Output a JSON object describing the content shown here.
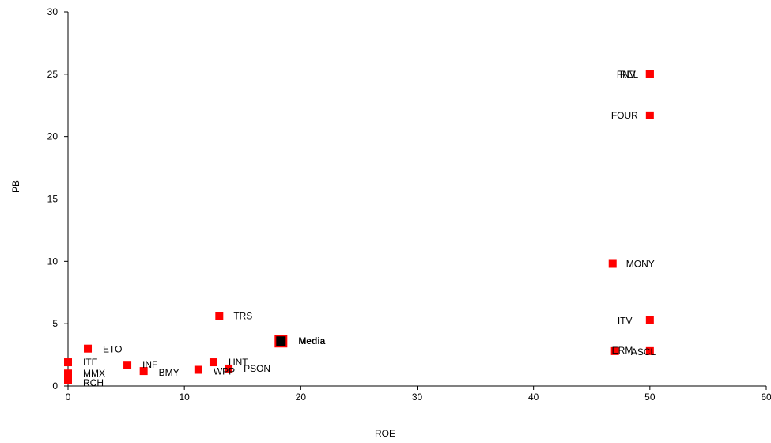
{
  "chart_data": {
    "type": "scatter",
    "title": "",
    "xlabel": "ROE",
    "ylabel": "PB",
    "xlim": [
      0,
      60
    ],
    "ylim": [
      0,
      30
    ],
    "xticks": [
      0,
      10,
      20,
      30,
      40,
      50,
      60
    ],
    "yticks": [
      0,
      5,
      10,
      15,
      20,
      25,
      30
    ],
    "grid": false,
    "marker_color": "#ff0000",
    "highlight_color": "#000000",
    "points": [
      {
        "label": "REL",
        "x": 50,
        "y": 25
      },
      {
        "label": "FNV",
        "x": 50,
        "y": 25
      },
      {
        "label": "FOUR",
        "x": 50,
        "y": 21.7
      },
      {
        "label": "MONY",
        "x": 46.8,
        "y": 9.8
      },
      {
        "label": "ITV",
        "x": 50,
        "y": 5.3
      },
      {
        "label": "ERM",
        "x": 47,
        "y": 2.8
      },
      {
        "label": "ASCL",
        "x": 50,
        "y": 2.8
      },
      {
        "label": "TRS",
        "x": 13,
        "y": 5.6
      },
      {
        "label": "Media",
        "x": 18.3,
        "y": 3.6,
        "highlight": true
      },
      {
        "label": "ETO",
        "x": 1.7,
        "y": 3.0
      },
      {
        "label": "ITE",
        "x": 0,
        "y": 1.9
      },
      {
        "label": "MMX",
        "x": 0,
        "y": 1.0
      },
      {
        "label": "RCH",
        "x": 0,
        "y": 0.5
      },
      {
        "label": "INF",
        "x": 5.1,
        "y": 1.7
      },
      {
        "label": "BMY",
        "x": 6.5,
        "y": 1.2
      },
      {
        "label": "WPP",
        "x": 11.2,
        "y": 1.3
      },
      {
        "label": "HNT",
        "x": 12.5,
        "y": 1.9
      },
      {
        "label": "PSON",
        "x": 13.8,
        "y": 1.4
      }
    ]
  }
}
